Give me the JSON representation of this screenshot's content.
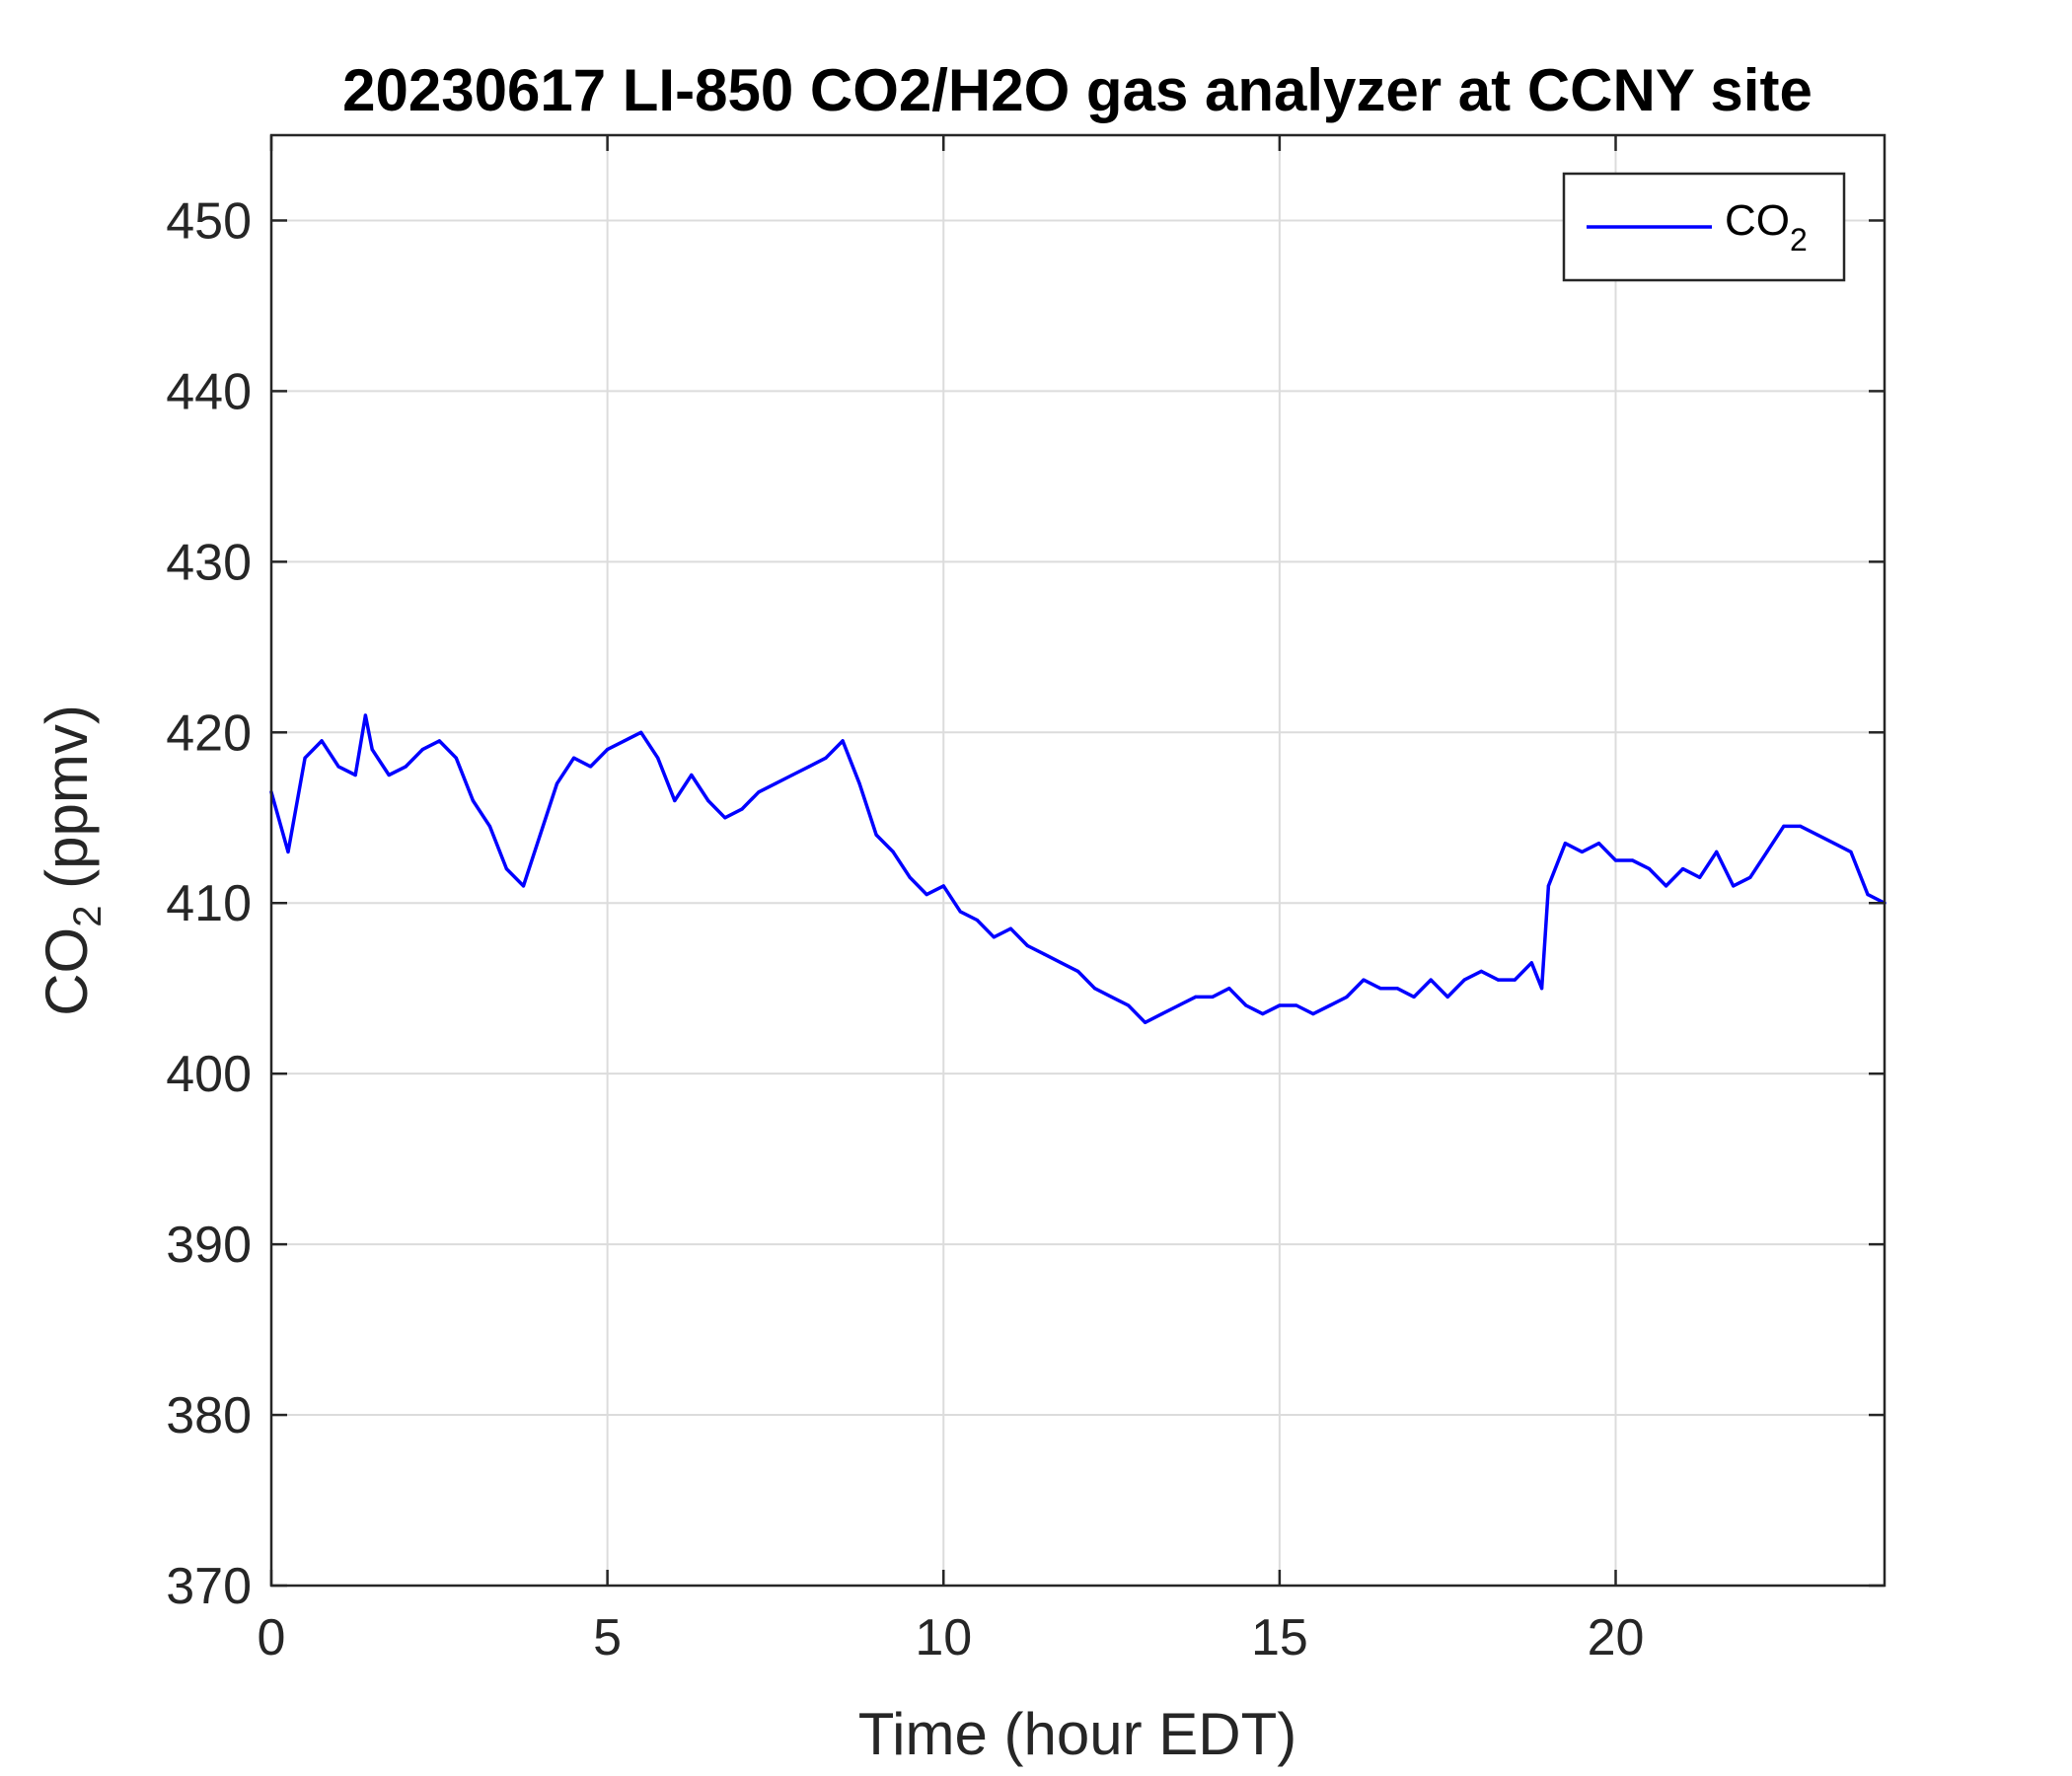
{
  "chart_data": {
    "type": "line",
    "title": "20230617 LI-850 CO2/H2O gas analyzer at CCNY site",
    "xlabel": "Time (hour EDT)",
    "ylabel": {
      "base": "CO",
      "sub": "2",
      "rest": " (ppmv)"
    },
    "xlim": [
      0,
      24
    ],
    "ylim": [
      370,
      455
    ],
    "xticks": [
      0,
      5,
      10,
      15,
      20
    ],
    "yticks": [
      370,
      380,
      390,
      400,
      410,
      420,
      430,
      440,
      450
    ],
    "grid": true,
    "legend_position": "top-right",
    "series": [
      {
        "name": {
          "base": "CO",
          "sub": "2"
        },
        "color": "#0000ff",
        "x": [
          0.0,
          0.25,
          0.5,
          0.75,
          1.0,
          1.25,
          1.4,
          1.5,
          1.75,
          2.0,
          2.25,
          2.5,
          2.75,
          3.0,
          3.25,
          3.5,
          3.75,
          4.0,
          4.25,
          4.5,
          4.75,
          5.0,
          5.25,
          5.5,
          5.75,
          6.0,
          6.25,
          6.5,
          6.75,
          7.0,
          7.25,
          7.5,
          7.75,
          8.0,
          8.25,
          8.5,
          8.75,
          9.0,
          9.25,
          9.5,
          9.75,
          10.0,
          10.25,
          10.5,
          10.75,
          11.0,
          11.25,
          11.5,
          11.75,
          12.0,
          12.25,
          12.5,
          12.75,
          13.0,
          13.25,
          13.5,
          13.75,
          14.0,
          14.25,
          14.5,
          14.75,
          15.0,
          15.25,
          15.5,
          15.75,
          16.0,
          16.25,
          16.5,
          16.75,
          17.0,
          17.25,
          17.5,
          17.75,
          18.0,
          18.25,
          18.5,
          18.75,
          18.9,
          19.0,
          19.25,
          19.5,
          19.75,
          20.0,
          20.25,
          20.5,
          20.75,
          21.0,
          21.25,
          21.5,
          21.75,
          22.0,
          22.25,
          22.5,
          22.75,
          23.0,
          23.25,
          23.5,
          23.75,
          24.0
        ],
        "values": [
          416.5,
          413.0,
          418.5,
          419.5,
          418.0,
          417.5,
          421.0,
          419.0,
          417.5,
          418.0,
          419.0,
          419.5,
          418.5,
          416.0,
          414.5,
          412.0,
          411.0,
          414.0,
          417.0,
          418.5,
          418.0,
          419.0,
          419.5,
          420.0,
          418.5,
          416.0,
          417.5,
          416.0,
          415.0,
          415.5,
          416.5,
          417.0,
          417.5,
          418.0,
          418.5,
          419.5,
          417.0,
          414.0,
          413.0,
          411.5,
          410.5,
          411.0,
          409.5,
          409.0,
          408.0,
          408.5,
          407.5,
          407.0,
          406.5,
          406.0,
          405.0,
          404.5,
          404.0,
          403.0,
          403.5,
          404.0,
          404.5,
          404.5,
          405.0,
          404.0,
          403.5,
          404.0,
          404.0,
          403.5,
          404.0,
          404.5,
          405.5,
          405.0,
          405.0,
          404.5,
          405.5,
          404.5,
          405.5,
          406.0,
          405.5,
          405.5,
          406.5,
          405.0,
          411.0,
          413.5,
          413.0,
          413.5,
          412.5,
          412.5,
          412.0,
          411.0,
          412.0,
          411.5,
          413.0,
          411.0,
          411.5,
          413.0,
          414.5,
          414.5,
          414.0,
          413.5,
          413.0,
          410.5,
          410.0
        ]
      }
    ]
  }
}
